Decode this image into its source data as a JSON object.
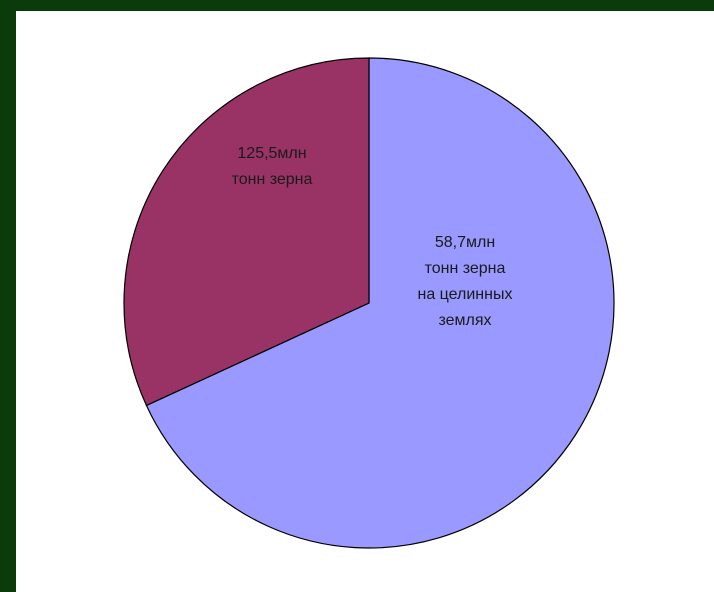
{
  "colors": {
    "background_frame": "#0b3a0b",
    "panel": "#ffffff",
    "outline": "#000000"
  },
  "chart_data": {
    "type": "pie",
    "title": "",
    "slices": [
      {
        "value": 125.5,
        "label_lines": [
          "125,5млн",
          "тонн зерна"
        ],
        "color": "#993366"
      },
      {
        "value": 58.7,
        "label_lines": [
          "58,7млн",
          "тонн зерна",
          "на целинных",
          "землях"
        ],
        "color": "#9999ff"
      }
    ],
    "legend": "none"
  }
}
